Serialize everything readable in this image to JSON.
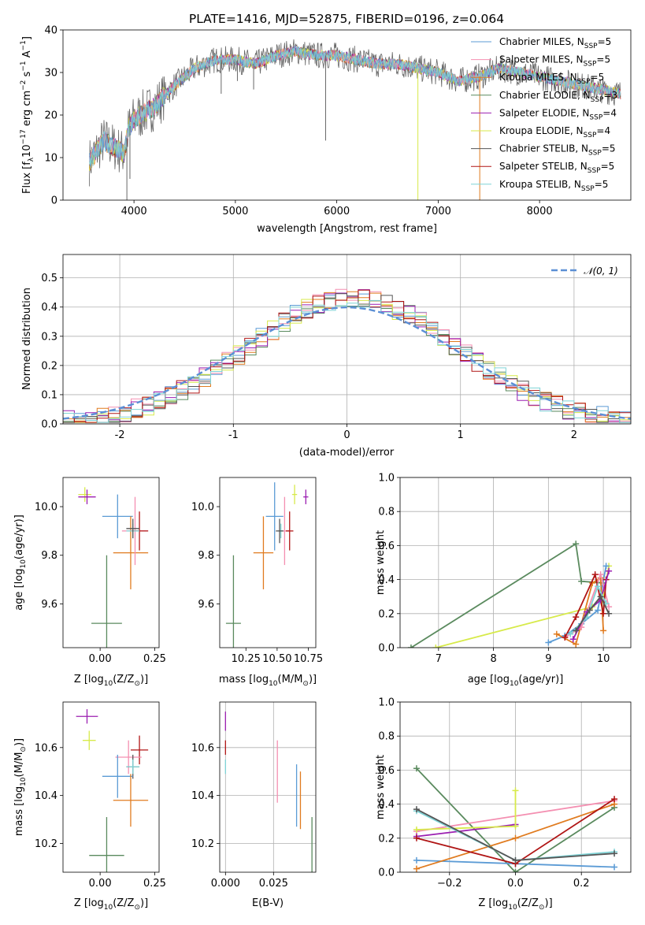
{
  "title": "PLATE=1416, MJD=52875, FIBERID=0196, z=0.064",
  "colors": {
    "chabrier_miles": "#5b9bd5",
    "salpeter_miles": "#f48fb1",
    "kroupa_miles": "#e07b1f",
    "chabrier_elodie": "#5a8a5e",
    "salpeter_elodie": "#9b1fb1",
    "kroupa_elodie": "#d7ea4a",
    "chabrier_stelib": "#555555",
    "salpeter_stelib": "#b01515",
    "kroupa_stelib": "#7fd3d6",
    "gaussian": "#5b8fd5"
  },
  "chart_data": [
    {
      "type": "line",
      "id": "spectrum",
      "title": "PLATE=1416, MJD=52875, FIBERID=0196, z=0.064",
      "xlabel": "wavelength [Angstrom, rest frame]",
      "ylabel_main": "Flux [f",
      "ylabel_sub": "λ",
      "ylabel_rest": "10",
      "ylabel_exp1": "−17",
      "ylabel_mid": " erg cm",
      "ylabel_exp2": "−2",
      "ylabel_mid2": " s",
      "ylabel_exp3": "−1",
      "ylabel_end": " A",
      "ylabel_exp4": "−1",
      "ylabel_close": "]",
      "xlim": [
        3300,
        8900
      ],
      "ylim": [
        0,
        40
      ],
      "xticks": [
        4000,
        5000,
        6000,
        7000,
        8000
      ],
      "yticks": [
        0,
        10,
        20,
        30,
        40
      ],
      "legend_position": "upper-right",
      "spectrum_envelope": {
        "x": [
          3560,
          3700,
          3900,
          3950,
          4000,
          4200,
          4400,
          4600,
          4800,
          5000,
          5200,
          5400,
          5600,
          5800,
          6000,
          6200,
          6400,
          6600,
          6800,
          7000,
          7200,
          7400,
          7600,
          7800,
          8000,
          8200,
          8400,
          8800
        ],
        "y": [
          9,
          14,
          11,
          17,
          19,
          22,
          27,
          31,
          33,
          33,
          32,
          34,
          35,
          34,
          34,
          33,
          32,
          32,
          31,
          30,
          28,
          29,
          31,
          30,
          29,
          28,
          27,
          25
        ]
      },
      "legend": [
        {
          "name": "Chabrier MILES, N",
          "sub": "SSP",
          "suffix": "=5",
          "color_key": "chabrier_miles"
        },
        {
          "name": "Salpeter MILES, N",
          "sub": "SSP",
          "suffix": "=5",
          "color_key": "salpeter_miles"
        },
        {
          "name": "Kroupa MILES, N",
          "sub": "SSP",
          "suffix": "=5",
          "color_key": "kroupa_miles"
        },
        {
          "name": "Chabrier ELODIE, N",
          "sub": "SSP",
          "suffix": "=3",
          "color_key": "chabrier_elodie"
        },
        {
          "name": "Salpeter ELODIE, N",
          "sub": "SSP",
          "suffix": "=4",
          "color_key": "salpeter_elodie"
        },
        {
          "name": "Kroupa ELODIE, N",
          "sub": "SSP",
          "suffix": "=4",
          "color_key": "kroupa_elodie"
        },
        {
          "name": "Chabrier STELIB, N",
          "sub": "SSP",
          "suffix": "=5",
          "color_key": "chabrier_stelib"
        },
        {
          "name": "Salpeter STELIB, N",
          "sub": "SSP",
          "suffix": "=5",
          "color_key": "salpeter_stelib"
        },
        {
          "name": "Kroupa STELIB, N",
          "sub": "SSP",
          "suffix": "=5",
          "color_key": "kroupa_stelib"
        }
      ]
    },
    {
      "type": "histogram",
      "id": "residuals",
      "xlabel": "(data-model)/error",
      "ylabel": "Normed distribution",
      "xlim": [
        -2.5,
        2.5
      ],
      "ylim": [
        0,
        0.58
      ],
      "xticks": [
        -2,
        -1,
        0,
        1,
        2
      ],
      "yticks": [
        0.0,
        0.1,
        0.2,
        0.3,
        0.4,
        0.5
      ],
      "ytick_labels": [
        "0.0",
        "0.1",
        "0.2",
        "0.3",
        "0.4",
        "0.5"
      ],
      "bin_width": 0.1,
      "grid": true,
      "legend_label": "𝒩(0, 1)",
      "legend_position": "upper-right",
      "gaussian": {
        "mean": 0,
        "sigma": 1
      }
    },
    {
      "type": "scatter",
      "id": "age_vs_z",
      "xlabel_pre": "Z [log",
      "xlabel_sub": "10",
      "xlabel_post": "(Z/Z",
      "xlabel_sub2": "⊙",
      "xlabel_end": ")]",
      "ylabel_pre": "age  [log",
      "ylabel_sub": "10",
      "ylabel_post": "(age/yr)]",
      "xlim": [
        -0.17,
        0.27
      ],
      "ylim": [
        9.42,
        10.12
      ],
      "xticks": [
        0.0,
        0.25
      ],
      "xtick_labels": [
        "0.00",
        "0.25"
      ],
      "yticks": [
        9.6,
        9.8,
        10.0
      ],
      "ytick_labels": [
        "9.6",
        "9.8",
        "10.0"
      ],
      "points": [
        {
          "color_key": "kroupa_elodie",
          "x": -0.07,
          "y": 10.05,
          "xerr": 0.03,
          "yerr": 0.03
        },
        {
          "color_key": "salpeter_elodie",
          "x": -0.06,
          "y": 10.04,
          "xerr": 0.04,
          "yerr": 0.03
        },
        {
          "color_key": "chabrier_miles",
          "x": 0.08,
          "y": 9.96,
          "xerr": 0.07,
          "yerr": 0.09
        },
        {
          "color_key": "kroupa_miles",
          "x": 0.14,
          "y": 9.81,
          "xerr": 0.08,
          "yerr": 0.15
        },
        {
          "color_key": "salpeter_miles",
          "x": 0.16,
          "y": 9.9,
          "xerr": 0.06,
          "yerr": 0.14
        },
        {
          "color_key": "salpeter_stelib",
          "x": 0.18,
          "y": 9.9,
          "xerr": 0.04,
          "yerr": 0.08
        },
        {
          "color_key": "kroupa_stelib",
          "x": 0.15,
          "y": 9.9,
          "xerr": 0.03,
          "yerr": 0.03
        },
        {
          "color_key": "chabrier_stelib",
          "x": 0.15,
          "y": 9.91,
          "xerr": 0.03,
          "yerr": 0.04
        },
        {
          "color_key": "chabrier_elodie",
          "x": 0.03,
          "y": 9.52,
          "xerr": 0.07,
          "yerr": 0.28
        }
      ]
    },
    {
      "type": "scatter",
      "id": "age_vs_mass",
      "xlabel_pre": "mass [log",
      "xlabel_sub": "10",
      "xlabel_post": "(M/M",
      "xlabel_sub2": "⊙",
      "xlabel_end": ")]",
      "xlim": [
        10.04,
        10.81
      ],
      "ylim": [
        9.42,
        10.12
      ],
      "xticks": [
        10.25,
        10.5,
        10.75
      ],
      "xtick_labels": [
        "10.25",
        "10.50",
        "10.75"
      ],
      "yticks": [
        9.6,
        9.8,
        10.0
      ],
      "ytick_labels": [
        "9.6",
        "9.8",
        "10.0"
      ],
      "points": [
        {
          "color_key": "kroupa_elodie",
          "x": 10.64,
          "y": 10.05,
          "xerr": 0.02,
          "yerr": 0.04
        },
        {
          "color_key": "salpeter_elodie",
          "x": 10.73,
          "y": 10.04,
          "xerr": 0.02,
          "yerr": 0.03
        },
        {
          "color_key": "chabrier_miles",
          "x": 10.48,
          "y": 9.96,
          "xerr": 0.07,
          "yerr": 0.14
        },
        {
          "color_key": "kroupa_miles",
          "x": 10.39,
          "y": 9.81,
          "xerr": 0.08,
          "yerr": 0.15
        },
        {
          "color_key": "salpeter_miles",
          "x": 10.56,
          "y": 9.9,
          "xerr": 0.04,
          "yerr": 0.14
        },
        {
          "color_key": "salpeter_stelib",
          "x": 10.6,
          "y": 9.9,
          "xerr": 0.03,
          "yerr": 0.08
        },
        {
          "color_key": "kroupa_stelib",
          "x": 10.53,
          "y": 9.9,
          "xerr": 0.02,
          "yerr": 0.03
        },
        {
          "color_key": "chabrier_stelib",
          "x": 10.52,
          "y": 9.9,
          "xerr": 0.03,
          "yerr": 0.05
        },
        {
          "color_key": "chabrier_elodie",
          "x": 10.15,
          "y": 9.52,
          "xerr": 0.06,
          "yerr": 0.28
        }
      ]
    },
    {
      "type": "line",
      "id": "massweight_vs_age",
      "xlabel_pre": "age  [log",
      "xlabel_sub": "10",
      "xlabel_post": "(age/yr)]",
      "ylabel": "mass weight",
      "xlim": [
        6.3,
        10.5
      ],
      "ylim": [
        0,
        1
      ],
      "xticks": [
        7,
        8,
        9,
        10
      ],
      "yticks": [
        0.0,
        0.2,
        0.4,
        0.6,
        0.8,
        1.0
      ],
      "ytick_labels": [
        "0.0",
        "0.2",
        "0.4",
        "0.6",
        "0.8",
        "1.0"
      ],
      "grid": true,
      "series": [
        {
          "color_key": "chabrier_elodie",
          "x": [
            6.5,
            9.5,
            9.6,
            10.0
          ],
          "y": [
            0.0,
            0.61,
            0.39,
            0.38
          ]
        },
        {
          "color_key": "kroupa_elodie",
          "x": [
            6.95,
            9.8,
            10.0,
            10.1
          ],
          "y": [
            0.0,
            0.24,
            0.3,
            0.48
          ]
        },
        {
          "color_key": "chabrier_miles",
          "x": [
            9.0,
            9.3,
            9.6,
            9.9,
            10.05
          ],
          "y": [
            0.03,
            0.07,
            0.14,
            0.22,
            0.48
          ]
        },
        {
          "color_key": "kroupa_miles",
          "x": [
            9.15,
            9.5,
            9.8,
            9.95,
            10.0
          ],
          "y": [
            0.08,
            0.02,
            0.38,
            0.41,
            0.1
          ]
        },
        {
          "color_key": "salpeter_miles",
          "x": [
            9.3,
            9.6,
            9.95,
            10.1
          ],
          "y": [
            0.06,
            0.12,
            0.43,
            0.24
          ]
        },
        {
          "color_key": "salpeter_stelib",
          "x": [
            9.3,
            9.5,
            9.85,
            10.0,
            10.05
          ],
          "y": [
            0.06,
            0.18,
            0.43,
            0.2,
            0.4
          ]
        },
        {
          "color_key": "salpeter_elodie",
          "x": [
            9.45,
            9.7,
            9.95,
            10.1
          ],
          "y": [
            0.05,
            0.21,
            0.28,
            0.45
          ]
        },
        {
          "color_key": "kroupa_stelib",
          "x": [
            9.4,
            9.7,
            9.9,
            10.05
          ],
          "y": [
            0.08,
            0.18,
            0.36,
            0.26
          ]
        },
        {
          "color_key": "chabrier_stelib",
          "x": [
            9.5,
            9.75,
            9.95,
            10.1
          ],
          "y": [
            0.1,
            0.22,
            0.3,
            0.2
          ]
        }
      ]
    },
    {
      "type": "scatter",
      "id": "mass_vs_z",
      "xlabel_pre": "Z [log",
      "xlabel_sub": "10",
      "xlabel_post": "(Z/Z",
      "xlabel_sub2": "⊙",
      "xlabel_end": ")]",
      "ylabel_pre": "mass [log",
      "ylabel_sub": "10",
      "ylabel_post": "(M/M",
      "ylabel_sub2": "⊙",
      "ylabel_end": ")]",
      "xlim": [
        -0.17,
        0.27
      ],
      "ylim": [
        10.08,
        10.79
      ],
      "xticks": [
        0.0,
        0.25
      ],
      "xtick_labels": [
        "0.00",
        "0.25"
      ],
      "yticks": [
        10.2,
        10.4,
        10.6
      ],
      "ytick_labels": [
        "10.2",
        "10.4",
        "10.6"
      ],
      "points": [
        {
          "color_key": "salpeter_elodie",
          "x": -0.06,
          "y": 10.73,
          "xerr": 0.05,
          "yerr": 0.03
        },
        {
          "color_key": "kroupa_elodie",
          "x": -0.05,
          "y": 10.63,
          "xerr": 0.03,
          "yerr": 0.04
        },
        {
          "color_key": "salpeter_stelib",
          "x": 0.18,
          "y": 10.59,
          "xerr": 0.04,
          "yerr": 0.06
        },
        {
          "color_key": "salpeter_miles",
          "x": 0.13,
          "y": 10.56,
          "xerr": 0.06,
          "yerr": 0.07
        },
        {
          "color_key": "chabrier_stelib",
          "x": 0.15,
          "y": 10.52,
          "xerr": 0.03,
          "yerr": 0.05
        },
        {
          "color_key": "kroupa_stelib",
          "x": 0.15,
          "y": 10.52,
          "xerr": 0.03,
          "yerr": 0.03
        },
        {
          "color_key": "chabrier_miles",
          "x": 0.08,
          "y": 10.48,
          "xerr": 0.07,
          "yerr": 0.09
        },
        {
          "color_key": "kroupa_miles",
          "x": 0.14,
          "y": 10.38,
          "xerr": 0.08,
          "yerr": 0.11
        },
        {
          "color_key": "chabrier_elodie",
          "x": 0.03,
          "y": 10.15,
          "xerr": 0.08,
          "yerr": 0.16
        }
      ]
    },
    {
      "type": "scatter",
      "id": "mass_vs_ebv",
      "xlabel": "E(B-V)",
      "xlim": [
        -0.003,
        0.047
      ],
      "ylim": [
        10.08,
        10.79
      ],
      "xticks": [
        0.0,
        0.025
      ],
      "xtick_labels": [
        "0.000",
        "0.025"
      ],
      "yticks": [
        10.2,
        10.4,
        10.6
      ],
      "ytick_labels": [
        "10.2",
        "10.4",
        "10.6"
      ],
      "grid": true,
      "points": [
        {
          "color_key": "salpeter_elodie",
          "x": 0.0,
          "y": 10.71,
          "xerr": 0.0,
          "yerr": 0.04
        },
        {
          "color_key": "salpeter_stelib",
          "x": 0.0,
          "y": 10.6,
          "xerr": 0.0,
          "yerr": 0.03
        },
        {
          "color_key": "kroupa_stelib",
          "x": 0.0,
          "y": 10.52,
          "xerr": 0.0,
          "yerr": 0.03
        },
        {
          "color_key": "salpeter_miles",
          "x": 0.027,
          "y": 10.5,
          "xerr": 0.0,
          "yerr": 0.13
        },
        {
          "color_key": "chabrier_miles",
          "x": 0.037,
          "y": 10.4,
          "xerr": 0.0,
          "yerr": 0.13
        },
        {
          "color_key": "kroupa_miles",
          "x": 0.039,
          "y": 10.38,
          "xerr": 0.0,
          "yerr": 0.12
        },
        {
          "color_key": "chabrier_elodie",
          "x": 0.045,
          "y": 10.15,
          "xerr": 0.0,
          "yerr": 0.16
        }
      ]
    },
    {
      "type": "line",
      "id": "massweight_vs_z",
      "xlabel_pre": "Z [log",
      "xlabel_sub": "10",
      "xlabel_post": "(Z/Z",
      "xlabel_sub2": "⊙",
      "xlabel_end": ")]",
      "ylabel": "mass weight",
      "xlim": [
        -0.35,
        0.35
      ],
      "ylim": [
        0,
        1
      ],
      "xticks": [
        -0.2,
        0.0,
        0.2
      ],
      "xtick_labels": [
        "−0.2",
        "0.0",
        "0.2"
      ],
      "yticks": [
        0.0,
        0.2,
        0.4,
        0.6,
        0.8,
        1.0
      ],
      "ytick_labels": [
        "0.0",
        "0.2",
        "0.4",
        "0.6",
        "0.8",
        "1.0"
      ],
      "grid": true,
      "series": [
        {
          "color_key": "chabrier_elodie",
          "x": [
            -0.3,
            0.0,
            0.3
          ],
          "y": [
            0.61,
            0.0,
            0.38
          ]
        },
        {
          "color_key": "chabrier_miles",
          "x": [
            -0.3,
            0.0,
            0.3
          ],
          "y": [
            0.07,
            0.05,
            0.03
          ]
        },
        {
          "color_key": "salpeter_miles",
          "x": [
            -0.3,
            0.3
          ],
          "y": [
            0.24,
            0.42
          ]
        },
        {
          "color_key": "kroupa_miles",
          "x": [
            -0.3,
            0.0,
            0.3
          ],
          "y": [
            0.02,
            0.2,
            0.4
          ]
        },
        {
          "color_key": "salpeter_elodie",
          "x": [
            -0.3,
            0.0
          ],
          "y": [
            0.21,
            0.28
          ]
        },
        {
          "color_key": "salpeter_stelib",
          "x": [
            -0.3,
            0.0,
            0.3
          ],
          "y": [
            0.2,
            0.05,
            0.43
          ]
        },
        {
          "color_key": "kroupa_elodie",
          "x": [
            -0.3,
            0.0,
            0.0
          ],
          "y": [
            0.25,
            0.27,
            0.48
          ]
        },
        {
          "color_key": "kroupa_stelib",
          "x": [
            -0.3,
            0.0,
            0.3
          ],
          "y": [
            0.36,
            0.07,
            0.12
          ]
        },
        {
          "color_key": "chabrier_stelib",
          "x": [
            -0.3,
            0.0,
            0.3
          ],
          "y": [
            0.37,
            0.07,
            0.11
          ]
        }
      ]
    }
  ]
}
